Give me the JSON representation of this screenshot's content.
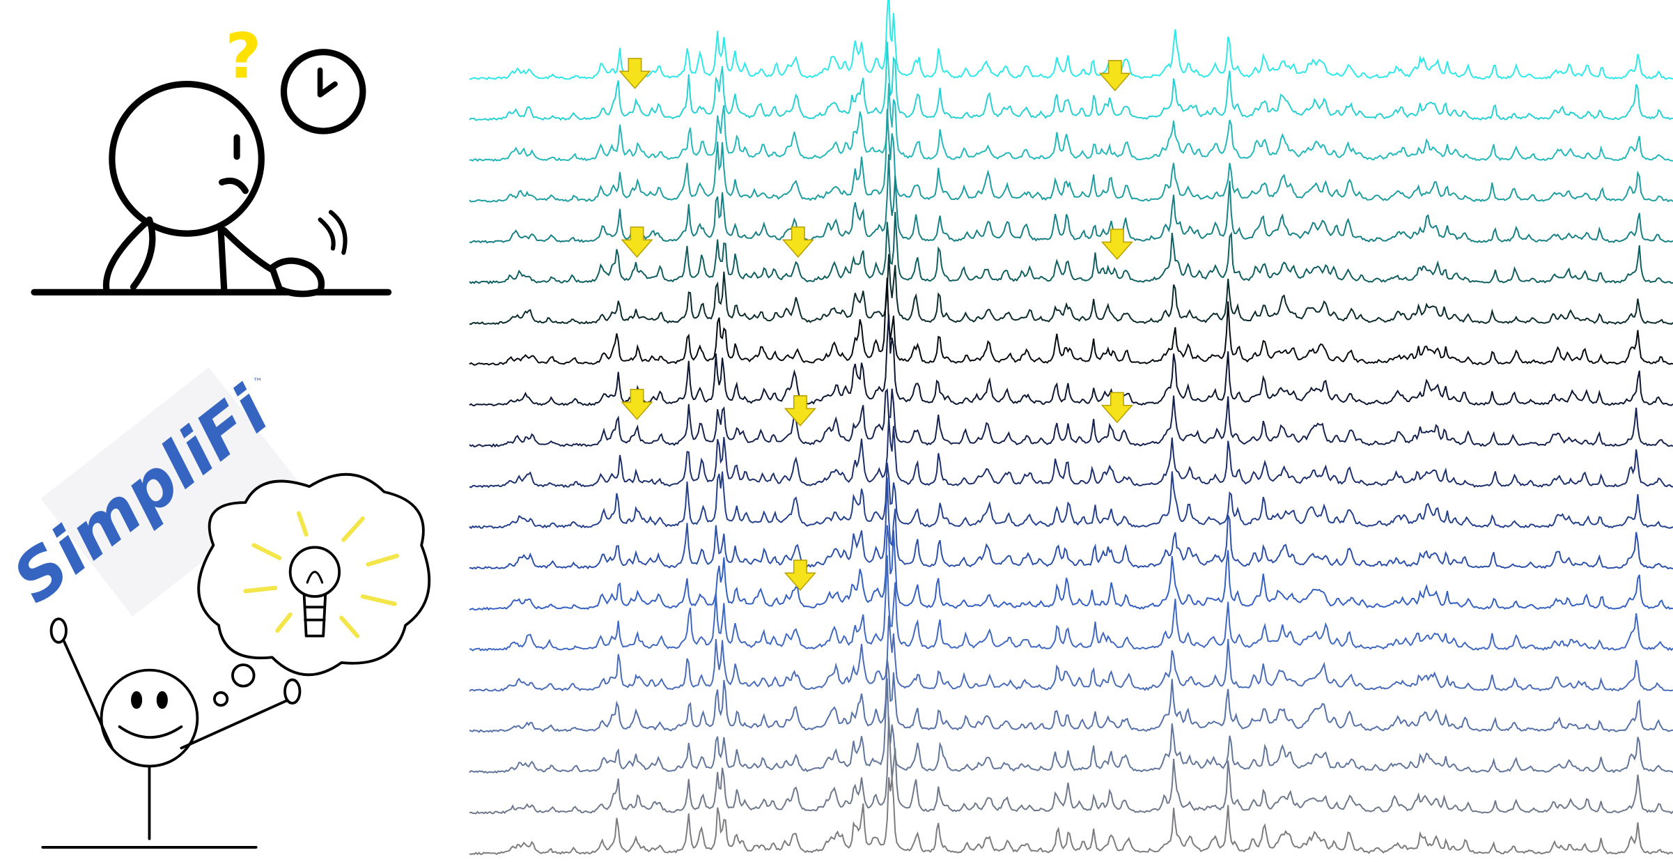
{
  "header": {
    "question_mark": "?",
    "logo": "SimpliFi",
    "trademark": "™"
  }
}
